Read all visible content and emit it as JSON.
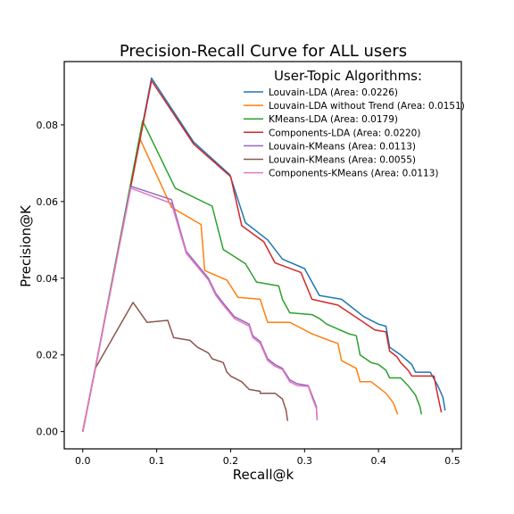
{
  "chart_data": {
    "type": "line",
    "title": "Precision-Recall Curve for ALL users",
    "xlabel": "Recall@k",
    "ylabel": "Precision@K",
    "xlim": [
      -0.025,
      0.512
    ],
    "ylim": [
      -0.0045,
      0.0965
    ],
    "xticks": [
      "0.0",
      "0.1",
      "0.2",
      "0.3",
      "0.4",
      "0.5"
    ],
    "xtick_values": [
      0,
      0.1,
      0.2,
      0.3,
      0.4,
      0.5
    ],
    "yticks": [
      "0.00",
      "0.02",
      "0.04",
      "0.06",
      "0.08"
    ],
    "ytick_values": [
      0,
      0.02,
      0.04,
      0.06,
      0.08
    ],
    "grid": false,
    "legend": {
      "title": "User-Topic Algorithms:",
      "placement": "top-right"
    },
    "series": [
      {
        "name": "Louvain-LDA (Area: 0.0226)",
        "color": "#1f77b4",
        "points": [
          [
            0,
            0
          ],
          [
            0.017,
            0.0165
          ],
          [
            0.093,
            0.0922
          ],
          [
            0.15,
            0.0755
          ],
          [
            0.199,
            0.067
          ],
          [
            0.22,
            0.0545
          ],
          [
            0.25,
            0.05
          ],
          [
            0.27,
            0.045
          ],
          [
            0.3,
            0.0425
          ],
          [
            0.32,
            0.0355
          ],
          [
            0.35,
            0.0345
          ],
          [
            0.38,
            0.03
          ],
          [
            0.4,
            0.028
          ],
          [
            0.41,
            0.0275
          ],
          [
            0.415,
            0.022
          ],
          [
            0.43,
            0.02
          ],
          [
            0.445,
            0.0175
          ],
          [
            0.45,
            0.0155
          ],
          [
            0.47,
            0.0155
          ],
          [
            0.48,
            0.012
          ],
          [
            0.487,
            0.009
          ],
          [
            0.49,
            0.0055
          ]
        ]
      },
      {
        "name": "Louvain-LDA without Trend (Area: 0.0151)",
        "color": "#ff7f0e",
        "points": [
          [
            0,
            0
          ],
          [
            0.017,
            0.0165
          ],
          [
            0.077,
            0.0765
          ],
          [
            0.12,
            0.0585
          ],
          [
            0.16,
            0.054
          ],
          [
            0.165,
            0.042
          ],
          [
            0.195,
            0.0395
          ],
          [
            0.21,
            0.035
          ],
          [
            0.24,
            0.0345
          ],
          [
            0.25,
            0.0285
          ],
          [
            0.28,
            0.0285
          ],
          [
            0.29,
            0.0275
          ],
          [
            0.31,
            0.0255
          ],
          [
            0.33,
            0.024
          ],
          [
            0.345,
            0.023
          ],
          [
            0.35,
            0.0185
          ],
          [
            0.37,
            0.0165
          ],
          [
            0.375,
            0.013
          ],
          [
            0.39,
            0.013
          ],
          [
            0.4,
            0.0115
          ],
          [
            0.41,
            0.01
          ],
          [
            0.42,
            0.0075
          ],
          [
            0.426,
            0.0045
          ]
        ]
      },
      {
        "name": "KMeans-LDA (Area: 0.0179)",
        "color": "#2ca02c",
        "points": [
          [
            0,
            0
          ],
          [
            0.017,
            0.0165
          ],
          [
            0.081,
            0.081
          ],
          [
            0.125,
            0.0635
          ],
          [
            0.175,
            0.0588
          ],
          [
            0.19,
            0.0475
          ],
          [
            0.22,
            0.0438
          ],
          [
            0.235,
            0.039
          ],
          [
            0.265,
            0.038
          ],
          [
            0.27,
            0.0345
          ],
          [
            0.28,
            0.031
          ],
          [
            0.31,
            0.0305
          ],
          [
            0.32,
            0.0295
          ],
          [
            0.33,
            0.028
          ],
          [
            0.36,
            0.0255
          ],
          [
            0.37,
            0.025
          ],
          [
            0.375,
            0.02
          ],
          [
            0.39,
            0.018
          ],
          [
            0.4,
            0.0175
          ],
          [
            0.41,
            0.016
          ],
          [
            0.415,
            0.014
          ],
          [
            0.43,
            0.014
          ],
          [
            0.44,
            0.012
          ],
          [
            0.45,
            0.0095
          ],
          [
            0.456,
            0.0065
          ],
          [
            0.458,
            0.0045
          ]
        ]
      },
      {
        "name": "Components-LDA (Area: 0.0220)",
        "color": "#d62728",
        "points": [
          [
            0,
            0
          ],
          [
            0.017,
            0.0165
          ],
          [
            0.093,
            0.0915
          ],
          [
            0.15,
            0.075
          ],
          [
            0.2,
            0.0665
          ],
          [
            0.215,
            0.0537
          ],
          [
            0.245,
            0.0495
          ],
          [
            0.26,
            0.044
          ],
          [
            0.295,
            0.0415
          ],
          [
            0.31,
            0.0345
          ],
          [
            0.345,
            0.033
          ],
          [
            0.38,
            0.0285
          ],
          [
            0.395,
            0.0265
          ],
          [
            0.41,
            0.026
          ],
          [
            0.415,
            0.021
          ],
          [
            0.425,
            0.0195
          ],
          [
            0.43,
            0.018
          ],
          [
            0.44,
            0.016
          ],
          [
            0.445,
            0.0145
          ],
          [
            0.475,
            0.0145
          ],
          [
            0.48,
            0.0095
          ],
          [
            0.485,
            0.005
          ]
        ]
      },
      {
        "name": "Louvain-KMeans (Area: 0.0113)",
        "color": "#9467bd",
        "points": [
          [
            0,
            0
          ],
          [
            0.017,
            0.0165
          ],
          [
            0.065,
            0.064
          ],
          [
            0.12,
            0.0605
          ],
          [
            0.14,
            0.047
          ],
          [
            0.17,
            0.04
          ],
          [
            0.18,
            0.036
          ],
          [
            0.19,
            0.0335
          ],
          [
            0.205,
            0.03
          ],
          [
            0.225,
            0.028
          ],
          [
            0.23,
            0.025
          ],
          [
            0.24,
            0.0235
          ],
          [
            0.25,
            0.019
          ],
          [
            0.26,
            0.0175
          ],
          [
            0.27,
            0.0165
          ],
          [
            0.28,
            0.0135
          ],
          [
            0.29,
            0.0125
          ],
          [
            0.305,
            0.012
          ],
          [
            0.31,
            0.0095
          ],
          [
            0.316,
            0.0065
          ],
          [
            0.317,
            0.003
          ]
        ]
      },
      {
        "name": "Louvain-KMeans (Area: 0.0055)",
        "color": "#8c564b",
        "points": [
          [
            0,
            0
          ],
          [
            0.017,
            0.0165
          ],
          [
            0.068,
            0.0337
          ],
          [
            0.087,
            0.0285
          ],
          [
            0.115,
            0.029
          ],
          [
            0.123,
            0.0245
          ],
          [
            0.145,
            0.0238
          ],
          [
            0.155,
            0.022
          ],
          [
            0.17,
            0.0205
          ],
          [
            0.175,
            0.019
          ],
          [
            0.19,
            0.018
          ],
          [
            0.195,
            0.0155
          ],
          [
            0.2,
            0.0145
          ],
          [
            0.215,
            0.013
          ],
          [
            0.225,
            0.011
          ],
          [
            0.24,
            0.0105
          ],
          [
            0.24,
            0.01
          ],
          [
            0.26,
            0.01
          ],
          [
            0.27,
            0.0085
          ],
          [
            0.275,
            0.0055
          ],
          [
            0.277,
            0.0028
          ]
        ]
      },
      {
        "name": "Components-KMeans (Area: 0.0113)",
        "color": "#e377c2",
        "points": [
          [
            0,
            0
          ],
          [
            0.017,
            0.0165
          ],
          [
            0.065,
            0.0635
          ],
          [
            0.12,
            0.0595
          ],
          [
            0.14,
            0.0465
          ],
          [
            0.17,
            0.0395
          ],
          [
            0.18,
            0.0355
          ],
          [
            0.19,
            0.033
          ],
          [
            0.205,
            0.0295
          ],
          [
            0.225,
            0.0275
          ],
          [
            0.23,
            0.0245
          ],
          [
            0.24,
            0.023
          ],
          [
            0.25,
            0.0185
          ],
          [
            0.26,
            0.017
          ],
          [
            0.27,
            0.0162
          ],
          [
            0.28,
            0.013
          ],
          [
            0.29,
            0.012
          ],
          [
            0.305,
            0.0118
          ],
          [
            0.31,
            0.009
          ],
          [
            0.316,
            0.006
          ],
          [
            0.317,
            0.003
          ]
        ]
      }
    ]
  }
}
